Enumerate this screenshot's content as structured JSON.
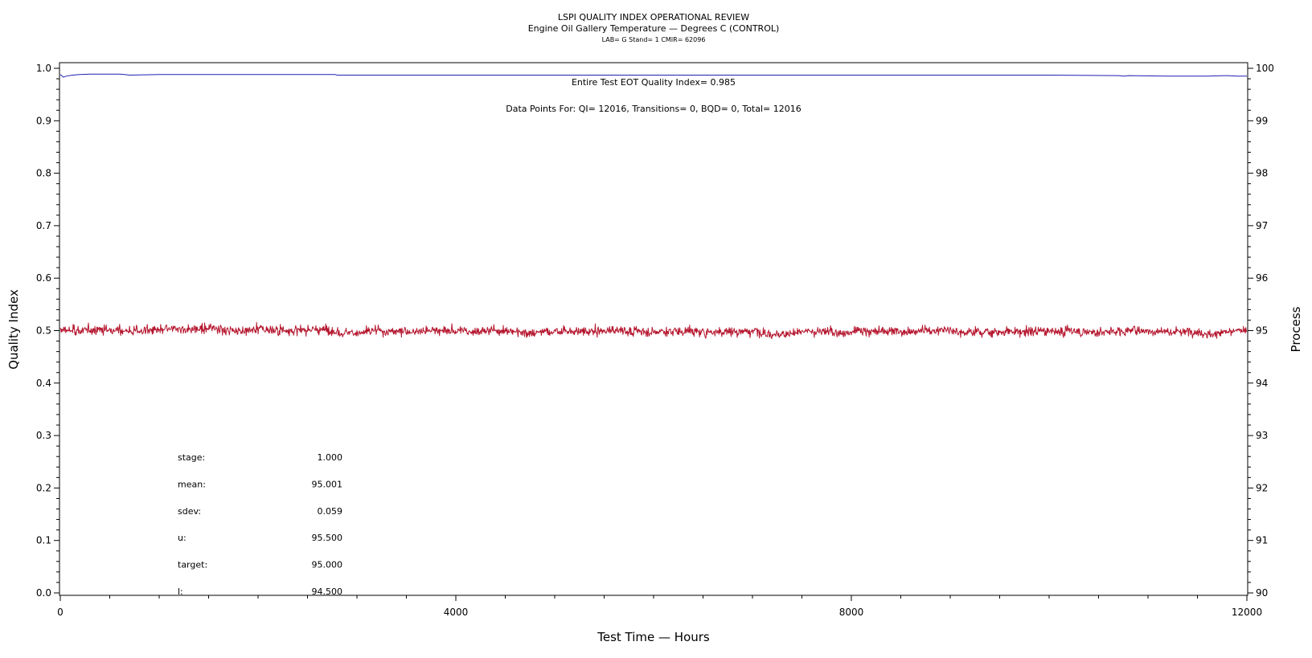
{
  "chart_data": {
    "type": "line",
    "title": "LSPI QUALITY INDEX OPERATIONAL REVIEW",
    "subtitle": "Engine Oil Gallery Temperature — Degrees C (CONTROL)",
    "subtitle2": "LAB= G Stand= 1 CMIR= 62096",
    "xlabel": "Test Time — Hours",
    "ylabel": "Quality Index",
    "y2label": "Process",
    "xlim": [
      0,
      12000
    ],
    "ylim": [
      0.0,
      1.0
    ],
    "y2lim": [
      90,
      100
    ],
    "x_ticks": [
      "0",
      "4000",
      "8000",
      "12000"
    ],
    "y_ticks": [
      "0.0",
      "0.1",
      "0.2",
      "0.3",
      "0.4",
      "0.5",
      "0.6",
      "0.7",
      "0.8",
      "0.9",
      "1.0"
    ],
    "y2_ticks": [
      "90",
      "91",
      "92",
      "93",
      "94",
      "95",
      "96",
      "97",
      "98",
      "99",
      "100"
    ],
    "grid": false,
    "annotations": {
      "quality_index": "Entire Test EOT Quality Index=   0.985",
      "data_points": "Data Points For: QI= 12016, Transitions=      0, BQD=      0, Total= 12016"
    },
    "stats": [
      {
        "label": "stage:",
        "value": "1.000"
      },
      {
        "label": "mean:",
        "value": "95.001"
      },
      {
        "label": "sdev:",
        "value": "0.059"
      },
      {
        "label": "u:",
        "value": "95.500"
      },
      {
        "label": "target:",
        "value": "95.000"
      },
      {
        "label": "l:",
        "value": "94.500"
      }
    ],
    "series": [
      {
        "axis": "left",
        "color": "#1f1fb4",
        "x": [
          0,
          15,
          30,
          60,
          120,
          200,
          300,
          600,
          650,
          700,
          1000,
          1500,
          2000,
          2500,
          2780,
          2800,
          4000,
          6000,
          8000,
          10000,
          10700,
          10760,
          10800,
          11200,
          11600,
          11800,
          11900,
          12000
        ],
        "values": [
          0.988,
          0.986,
          0.983,
          0.985,
          0.987,
          0.988,
          0.989,
          0.989,
          0.988,
          0.987,
          0.988,
          0.988,
          0.988,
          0.988,
          0.988,
          0.987,
          0.987,
          0.987,
          0.987,
          0.987,
          0.986,
          0.985,
          0.986,
          0.985,
          0.985,
          0.986,
          0.985,
          0.985
        ]
      },
      {
        "axis": "right",
        "color": "#b5172f",
        "x": [
          0,
          12000
        ],
        "mean": 95.001,
        "sdev": 0.059,
        "n_points": 12016
      }
    ]
  }
}
